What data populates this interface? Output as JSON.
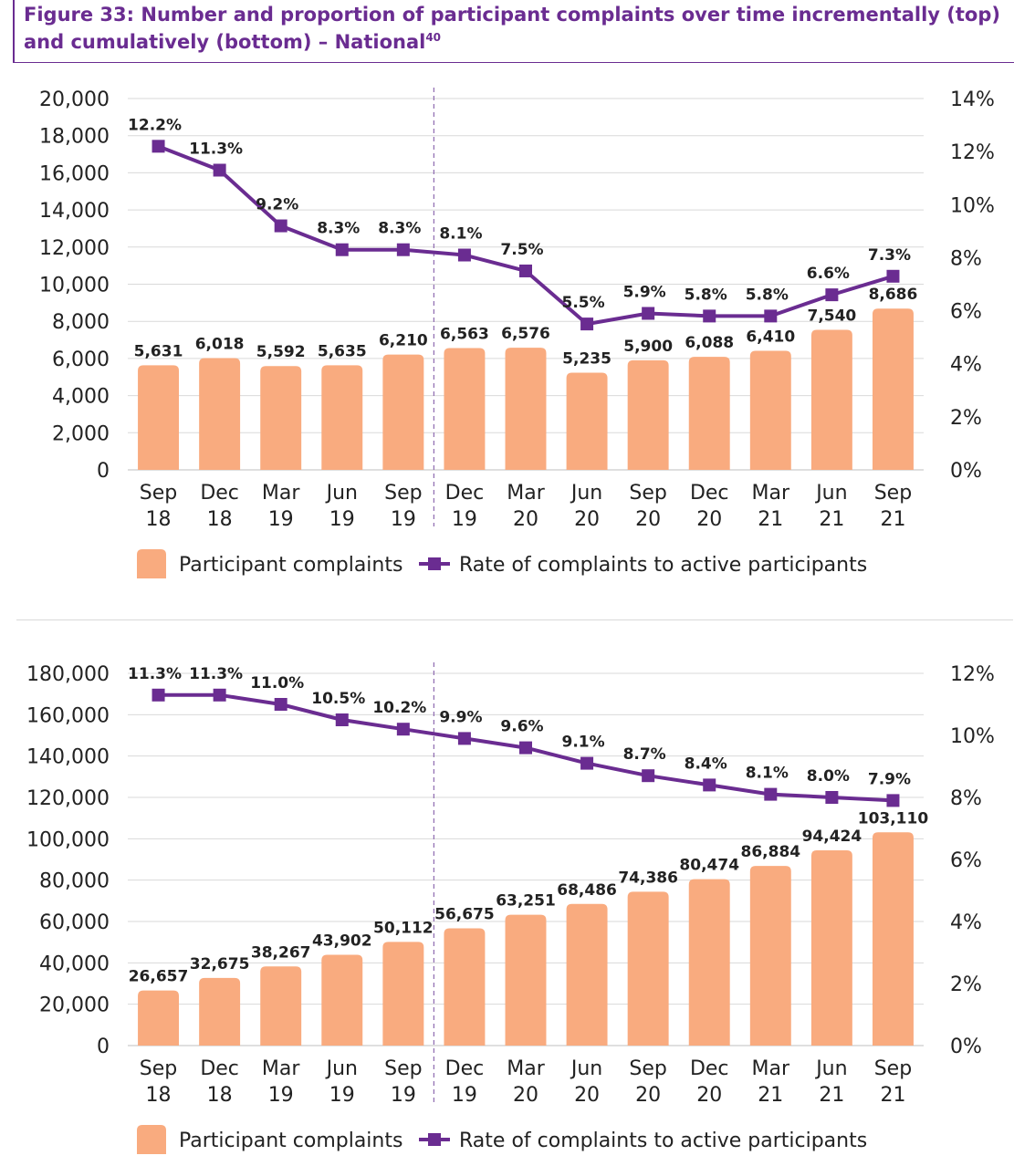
{
  "title": {
    "line1": "Figure 33: Number and proportion of participant complaints over time incrementally (top)",
    "line2": "and cumulatively (bottom) – National",
    "footnote": "40"
  },
  "colors": {
    "bar": "#f9ab7f",
    "line": "#6a2c91",
    "grid": "#d9d9d9",
    "divider": "#8e6bb0",
    "title": "#6a2c91"
  },
  "chart_data": [
    {
      "type": "bar",
      "mode": "incremental",
      "categories": [
        [
          "Sep",
          "18"
        ],
        [
          "Dec",
          "18"
        ],
        [
          "Mar",
          "19"
        ],
        [
          "Jun",
          "19"
        ],
        [
          "Sep",
          "19"
        ],
        [
          "Dec",
          "19"
        ],
        [
          "Mar",
          "20"
        ],
        [
          "Jun",
          "20"
        ],
        [
          "Sep",
          "20"
        ],
        [
          "Dec",
          "20"
        ],
        [
          "Mar",
          "21"
        ],
        [
          "Jun",
          "21"
        ],
        [
          "Sep",
          "21"
        ]
      ],
      "series": [
        {
          "name": "Participant complaints",
          "axis": "left",
          "values": [
            5631,
            6018,
            5592,
            5635,
            6210,
            6563,
            6576,
            5235,
            5900,
            6088,
            6410,
            7540,
            8686
          ],
          "labels": [
            "5,631",
            "6,018",
            "5,592",
            "5,635",
            "6,210",
            "6,563",
            "6,576",
            "5,235",
            "5,900",
            "6,088",
            "6,410",
            "7,540",
            "8,686"
          ]
        },
        {
          "name": "Rate of complaints to active participants",
          "axis": "right",
          "type": "line",
          "values": [
            12.2,
            11.3,
            9.2,
            8.3,
            8.3,
            8.1,
            7.5,
            5.5,
            5.9,
            5.8,
            5.8,
            6.6,
            7.3
          ],
          "labels": [
            "12.2%",
            "11.3%",
            "9.2%",
            "8.3%",
            "8.3%",
            "8.1%",
            "7.5%",
            "5.5%",
            "5.9%",
            "5.8%",
            "5.8%",
            "6.6%",
            "7.3%"
          ]
        }
      ],
      "ylim": [
        0,
        20000
      ],
      "yticks": [
        "0",
        "2,000",
        "4,000",
        "6,000",
        "8,000",
        "10,000",
        "12,000",
        "14,000",
        "16,000",
        "18,000",
        "20,000"
      ],
      "y2lim": [
        0,
        14
      ],
      "y2ticks": [
        "0%",
        "2%",
        "4%",
        "6%",
        "8%",
        "10%",
        "12%",
        "14%"
      ],
      "divider_after_category": 4,
      "grid": true,
      "legend": "bottom"
    },
    {
      "type": "bar",
      "mode": "cumulative",
      "categories": [
        [
          "Sep",
          "18"
        ],
        [
          "Dec",
          "18"
        ],
        [
          "Mar",
          "19"
        ],
        [
          "Jun",
          "19"
        ],
        [
          "Sep",
          "19"
        ],
        [
          "Dec",
          "19"
        ],
        [
          "Mar",
          "20"
        ],
        [
          "Jun",
          "20"
        ],
        [
          "Sep",
          "20"
        ],
        [
          "Dec",
          "20"
        ],
        [
          "Mar",
          "21"
        ],
        [
          "Jun",
          "21"
        ],
        [
          "Sep",
          "21"
        ]
      ],
      "series": [
        {
          "name": "Participant complaints",
          "axis": "left",
          "values": [
            26657,
            32675,
            38267,
            43902,
            50112,
            56675,
            63251,
            68486,
            74386,
            80474,
            86884,
            94424,
            103110
          ],
          "labels": [
            "26,657",
            "32,675",
            "38,267",
            "43,902",
            "50,112",
            "56,675",
            "63,251",
            "68,486",
            "74,386",
            "80,474",
            "86,884",
            "94,424",
            "103,110"
          ]
        },
        {
          "name": "Rate of complaints to active participants",
          "axis": "right",
          "type": "line",
          "values": [
            11.3,
            11.3,
            11.0,
            10.5,
            10.2,
            9.9,
            9.6,
            9.1,
            8.7,
            8.4,
            8.1,
            8.0,
            7.9
          ],
          "labels": [
            "11.3%",
            "11.3%",
            "11.0%",
            "10.5%",
            "10.2%",
            "9.9%",
            "9.6%",
            "9.1%",
            "8.7%",
            "8.4%",
            "8.1%",
            "8.0%",
            "7.9%"
          ]
        }
      ],
      "ylim": [
        0,
        180000
      ],
      "yticks": [
        "0",
        "20,000",
        "40,000",
        "60,000",
        "80,000",
        "100,000",
        "120,000",
        "140,000",
        "160,000",
        "180,000"
      ],
      "y2lim": [
        0,
        12
      ],
      "y2ticks": [
        "0%",
        "2%",
        "4%",
        "6%",
        "8%",
        "10%",
        "12%"
      ],
      "divider_after_category": 4,
      "grid": true,
      "legend": "bottom"
    }
  ]
}
